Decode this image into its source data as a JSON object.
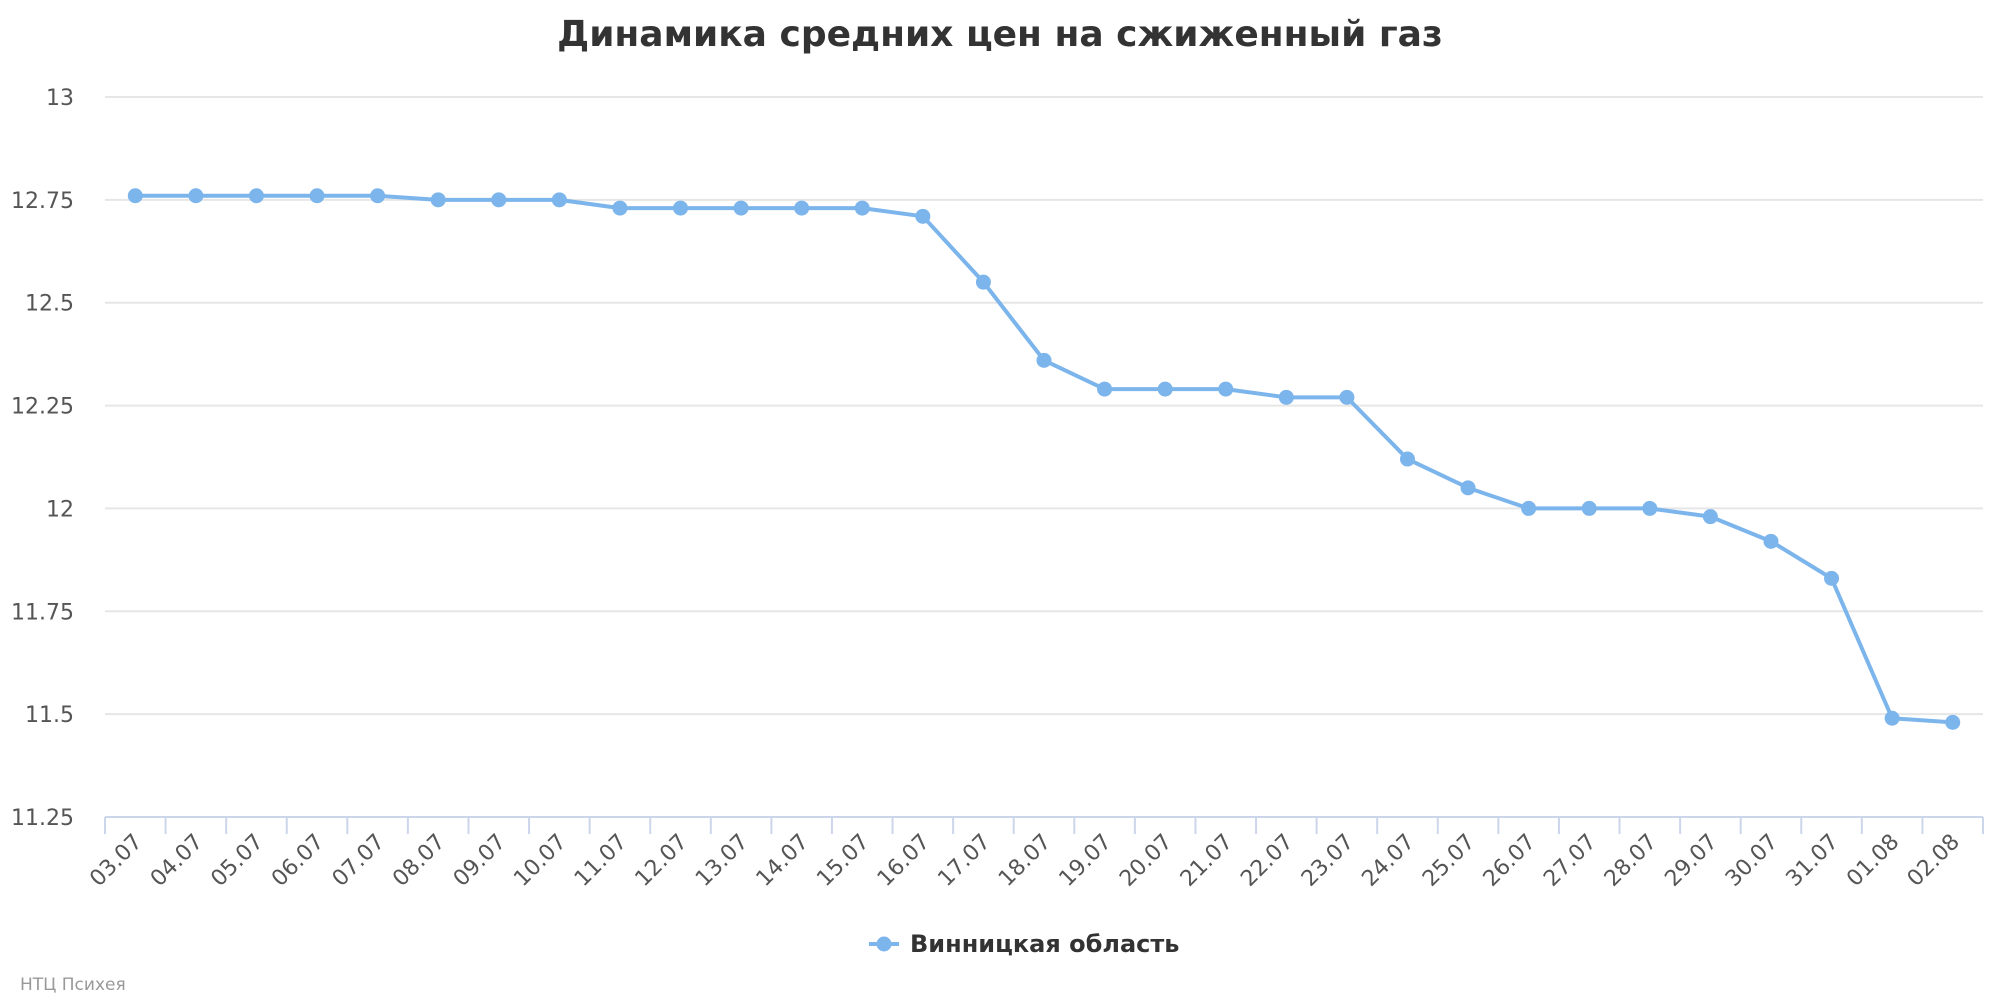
{
  "chart_data": {
    "type": "line",
    "title": "Динамика средних цен на сжиженный газ",
    "xlabel": "",
    "ylabel": "",
    "categories": [
      "03.07",
      "04.07",
      "05.07",
      "06.07",
      "07.07",
      "08.07",
      "09.07",
      "10.07",
      "11.07",
      "12.07",
      "13.07",
      "14.07",
      "15.07",
      "16.07",
      "17.07",
      "18.07",
      "19.07",
      "20.07",
      "21.07",
      "22.07",
      "23.07",
      "24.07",
      "25.07",
      "26.07",
      "27.07",
      "28.07",
      "29.07",
      "30.07",
      "31.07",
      "01.08",
      "02.08"
    ],
    "ylim": [
      11.25,
      13
    ],
    "yticks": [
      "11.25",
      "11.5",
      "11.75",
      "12",
      "12.25",
      "12.5",
      "12.75",
      "13"
    ],
    "grid": true,
    "legend_position": "bottom-center",
    "series": [
      {
        "name": "Винницкая область",
        "color": "#7cb5ec",
        "values": [
          12.76,
          12.76,
          12.76,
          12.76,
          12.76,
          12.75,
          12.75,
          12.75,
          12.73,
          12.73,
          12.73,
          12.73,
          12.73,
          12.71,
          12.55,
          12.36,
          12.29,
          12.29,
          12.29,
          12.27,
          12.27,
          12.12,
          12.05,
          12.0,
          12.0,
          12.0,
          11.98,
          11.92,
          11.83,
          11.49,
          11.48
        ]
      }
    ]
  },
  "credits": "НТЦ Психея"
}
